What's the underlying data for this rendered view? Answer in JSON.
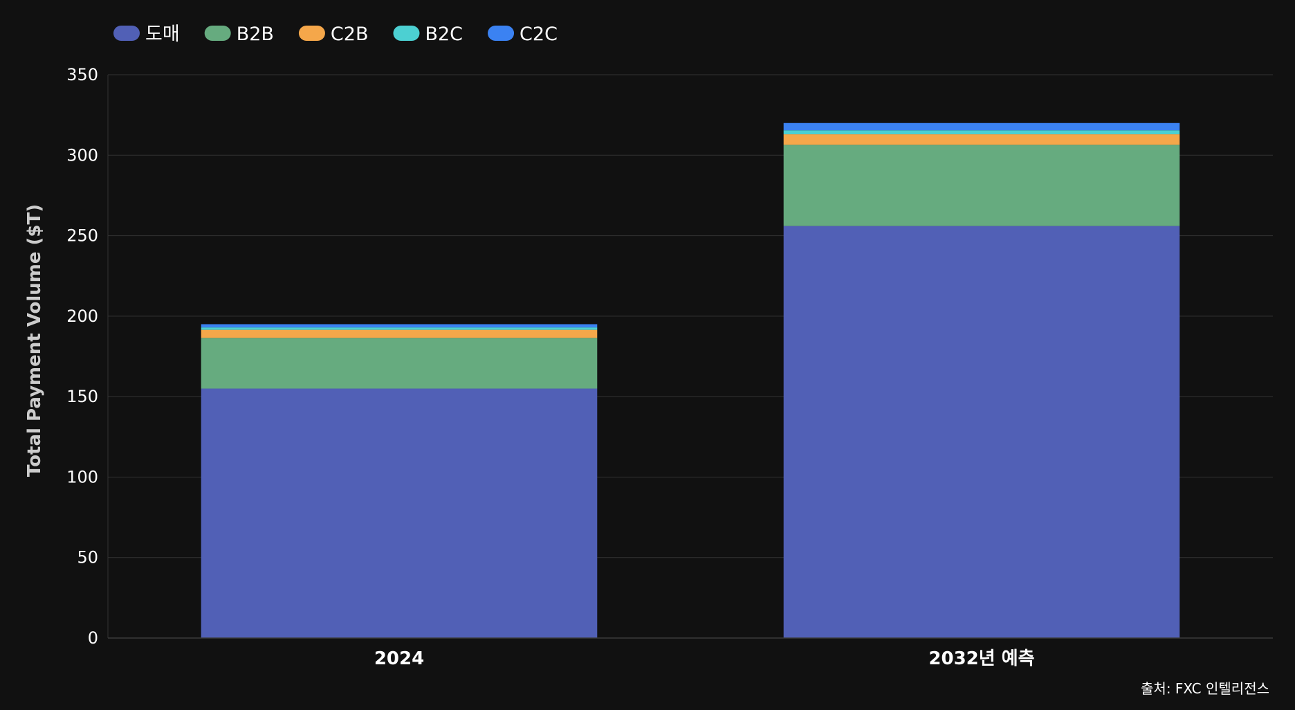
{
  "chart_data": {
    "type": "bar",
    "stacked": true,
    "categories": [
      "2024",
      "2032년 예측"
    ],
    "series": [
      {
        "name": "도매",
        "color": "#5160b6",
        "values": [
          155,
          256
        ]
      },
      {
        "name": "B2B",
        "color": "#66ab7f",
        "values": [
          31.5,
          50.5
        ]
      },
      {
        "name": "C2B",
        "color": "#f5a74a",
        "values": [
          5,
          6.5
        ]
      },
      {
        "name": "B2C",
        "color": "#4cd0d2",
        "values": [
          1.5,
          2.5
        ]
      },
      {
        "name": "C2C",
        "color": "#3b82f2",
        "values": [
          2,
          4.5
        ]
      }
    ],
    "title": "",
    "xlabel": "",
    "ylabel": "Total Payment Volume ($T)",
    "ylim": [
      0,
      350
    ],
    "yticks": [
      0,
      50,
      100,
      150,
      200,
      250,
      300,
      350
    ],
    "grid": true,
    "legend": "top-left",
    "source": "출처: FXC 인텔리전스",
    "background_color": "#111111",
    "grid_color": "#333333"
  }
}
